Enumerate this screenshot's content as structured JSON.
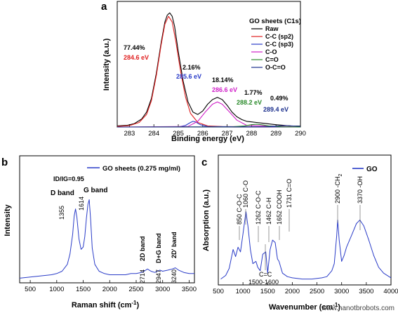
{
  "chart_data": [
    {
      "panel": "a",
      "type": "line",
      "xlabel": "Binding energy (eV)",
      "ylabel": "Intensity (a.u.)",
      "xlim": [
        282.5,
        290
      ],
      "ylim": [
        0,
        1.1
      ],
      "xticks": [
        283,
        284,
        285,
        286,
        287,
        288,
        289,
        290
      ],
      "legend_title": "GO sheets (C1s)",
      "legend_placement": "top-right",
      "series": [
        {
          "name": "Raw",
          "color": "#000000",
          "x": [
            282.5,
            282.9,
            283.2,
            283.5,
            283.7,
            283.9,
            284.1,
            284.3,
            284.45,
            284.55,
            284.65,
            284.75,
            284.85,
            285.0,
            285.2,
            285.4,
            285.6,
            285.8,
            286.0,
            286.2,
            286.4,
            286.6,
            286.8,
            287.0,
            287.2,
            287.4,
            287.6,
            287.8,
            288.0,
            288.2,
            288.4,
            288.6,
            288.8,
            289.0,
            289.3,
            289.6,
            290.0
          ],
          "y": [
            0.01,
            0.015,
            0.03,
            0.07,
            0.13,
            0.25,
            0.47,
            0.74,
            0.92,
            0.98,
            1.0,
            0.97,
            0.88,
            0.66,
            0.4,
            0.22,
            0.13,
            0.11,
            0.14,
            0.2,
            0.24,
            0.26,
            0.24,
            0.19,
            0.13,
            0.09,
            0.065,
            0.05,
            0.045,
            0.04,
            0.035,
            0.03,
            0.025,
            0.02,
            0.015,
            0.01,
            0.008
          ]
        },
        {
          "name": "C-C (sp2)",
          "color": "#e02020",
          "x": [
            282.5,
            283.0,
            283.4,
            283.7,
            283.9,
            284.1,
            284.3,
            284.45,
            284.6,
            284.75,
            284.9,
            285.1,
            285.3,
            285.5,
            285.8,
            286.2,
            286.8,
            290.0
          ],
          "y": [
            0.005,
            0.012,
            0.04,
            0.11,
            0.23,
            0.45,
            0.72,
            0.9,
            0.97,
            0.92,
            0.75,
            0.48,
            0.26,
            0.12,
            0.04,
            0.01,
            0.004,
            0.0
          ]
        },
        {
          "name": "C-C (sp3)",
          "color": "#2a3cc8",
          "x": [
            282.5,
            285.0,
            285.3,
            285.5,
            285.6,
            285.7,
            285.9,
            286.2,
            290.0
          ],
          "y": [
            0.0,
            0.0,
            0.015,
            0.04,
            0.05,
            0.045,
            0.02,
            0.004,
            0.0
          ]
        },
        {
          "name": "C-O",
          "color": "#d020c8",
          "x": [
            282.5,
            285.4,
            285.8,
            286.1,
            286.4,
            286.6,
            286.8,
            287.1,
            287.4,
            287.8,
            290.0
          ],
          "y": [
            0.0,
            0.005,
            0.05,
            0.13,
            0.2,
            0.22,
            0.2,
            0.13,
            0.06,
            0.015,
            0.0
          ]
        },
        {
          "name": "C=O",
          "color": "#2a8a2a",
          "x": [
            282.5,
            287.2,
            287.7,
            288.0,
            288.2,
            288.4,
            288.7,
            289.2,
            290.0
          ],
          "y": [
            0.0,
            0.002,
            0.01,
            0.02,
            0.025,
            0.02,
            0.01,
            0.002,
            0.0
          ]
        },
        {
          "name": "O-C=O",
          "color": "#1b2f8c",
          "x": [
            282.5,
            288.5,
            289.0,
            289.4,
            289.8,
            290.0
          ],
          "y": [
            0.0,
            0.002,
            0.008,
            0.012,
            0.008,
            0.005
          ]
        }
      ],
      "annotations": [
        {
          "text": "77.44%",
          "color": "#000000"
        },
        {
          "text": "284.6 eV",
          "color": "#e02020"
        },
        {
          "text": "2.16%",
          "color": "#000000"
        },
        {
          "text": "285.6 eV",
          "color": "#2a3cc8"
        },
        {
          "text": "18.14%",
          "color": "#000000"
        },
        {
          "text": "286.6 eV",
          "color": "#d020c8"
        },
        {
          "text": "1.77%",
          "color": "#000000"
        },
        {
          "text": "288.2 eV",
          "color": "#2a8a2a"
        },
        {
          "text": "0.49%",
          "color": "#000000"
        },
        {
          "text": "289.4 eV",
          "color": "#1b2f8c"
        }
      ]
    },
    {
      "panel": "b",
      "type": "line",
      "xlabel": "Raman shift (cm",
      "xlabel_sup": "-1",
      "xlabel_tail": ")",
      "ylabel": "Intensity",
      "xlim": [
        300,
        3600
      ],
      "ylim": [
        0,
        1.1
      ],
      "xticks": [
        500,
        1000,
        1500,
        2000,
        2500,
        3000,
        3500
      ],
      "ratio_text": "ID/IG=0.95",
      "legend_placement": "top-right",
      "series": [
        {
          "name": "GO sheets (0.275 mg/ml)",
          "color": "#2a3cc8",
          "x": [
            300,
            500,
            700,
            900,
            1000,
            1100,
            1200,
            1250,
            1300,
            1330,
            1355,
            1380,
            1420,
            1460,
            1500,
            1530,
            1560,
            1590,
            1614,
            1640,
            1670,
            1720,
            1800,
            1900,
            2000,
            2100,
            2200,
            2300,
            2400,
            2500,
            2600,
            2650,
            2714,
            2780,
            2850,
            2900,
            2947,
            3000,
            3100,
            3180,
            3240,
            3300,
            3400,
            3500,
            3600
          ],
          "y": [
            0.04,
            0.05,
            0.06,
            0.07,
            0.08,
            0.1,
            0.16,
            0.25,
            0.42,
            0.58,
            0.64,
            0.57,
            0.38,
            0.29,
            0.31,
            0.4,
            0.56,
            0.68,
            0.72,
            0.55,
            0.3,
            0.16,
            0.1,
            0.08,
            0.07,
            0.07,
            0.07,
            0.07,
            0.08,
            0.08,
            0.09,
            0.1,
            0.12,
            0.1,
            0.09,
            0.1,
            0.11,
            0.1,
            0.11,
            0.12,
            0.13,
            0.11,
            0.09,
            0.08,
            0.08
          ]
        }
      ],
      "annotations": [
        {
          "text": "D band"
        },
        {
          "text": "G band"
        },
        {
          "text": "1355"
        },
        {
          "text": "1614"
        },
        {
          "text": "2D band"
        },
        {
          "text": "D+G band"
        },
        {
          "text": "2D' band"
        },
        {
          "text": "2714"
        },
        {
          "text": "2947"
        },
        {
          "text": "3240"
        }
      ]
    },
    {
      "panel": "c",
      "type": "line",
      "xlabel": "Wavenumber (cm",
      "xlabel_sup": "-1",
      "xlabel_tail": ")",
      "ylabel": "Absorption (a.u.)",
      "xlim": [
        500,
        4000
      ],
      "ylim": [
        0,
        1.1
      ],
      "xticks": [
        500,
        1000,
        1500,
        2000,
        2500,
        3000,
        3500,
        4000
      ],
      "legend_placement": "top-right",
      "series": [
        {
          "name": "GO",
          "color": "#2a3cc8",
          "x": [
            550,
            650,
            720,
            800,
            850,
            900,
            950,
            1000,
            1060,
            1100,
            1150,
            1200,
            1262,
            1300,
            1350,
            1400,
            1462,
            1500,
            1550,
            1600,
            1652,
            1700,
            1731,
            1800,
            1900,
            2000,
            2200,
            2400,
            2600,
            2700,
            2800,
            2850,
            2900,
            2920,
            2950,
            3000,
            3050,
            3100,
            3200,
            3300,
            3370,
            3450,
            3550,
            3650,
            3750,
            3850,
            4000
          ],
          "y": [
            0.05,
            0.08,
            0.14,
            0.3,
            0.24,
            0.32,
            0.28,
            0.43,
            0.62,
            0.5,
            0.3,
            0.18,
            0.2,
            0.15,
            0.12,
            0.26,
            0.28,
            0.1,
            0.3,
            0.38,
            0.36,
            0.22,
            0.2,
            0.1,
            0.07,
            0.06,
            0.05,
            0.05,
            0.06,
            0.07,
            0.12,
            0.18,
            0.42,
            0.55,
            0.38,
            0.2,
            0.25,
            0.32,
            0.42,
            0.52,
            0.55,
            0.5,
            0.38,
            0.25,
            0.15,
            0.1,
            0.06
          ]
        }
      ],
      "annotations": [
        {
          "text": "850 C-O-C"
        },
        {
          "text": "1060 C-O"
        },
        {
          "text": "1262 C-O-C"
        },
        {
          "text": "1462 C-H"
        },
        {
          "text": "1652 COOH"
        },
        {
          "text": "1731 C=O"
        },
        {
          "text": "2900 -CH"
        },
        {
          "text": "2"
        },
        {
          "text": "3370 -OH"
        },
        {
          "text": "C=C"
        },
        {
          "text": "1500-1600"
        }
      ]
    }
  ],
  "panel_letters": [
    "a",
    "b",
    "c"
  ],
  "watermark": "www.nanotbrobots.com"
}
